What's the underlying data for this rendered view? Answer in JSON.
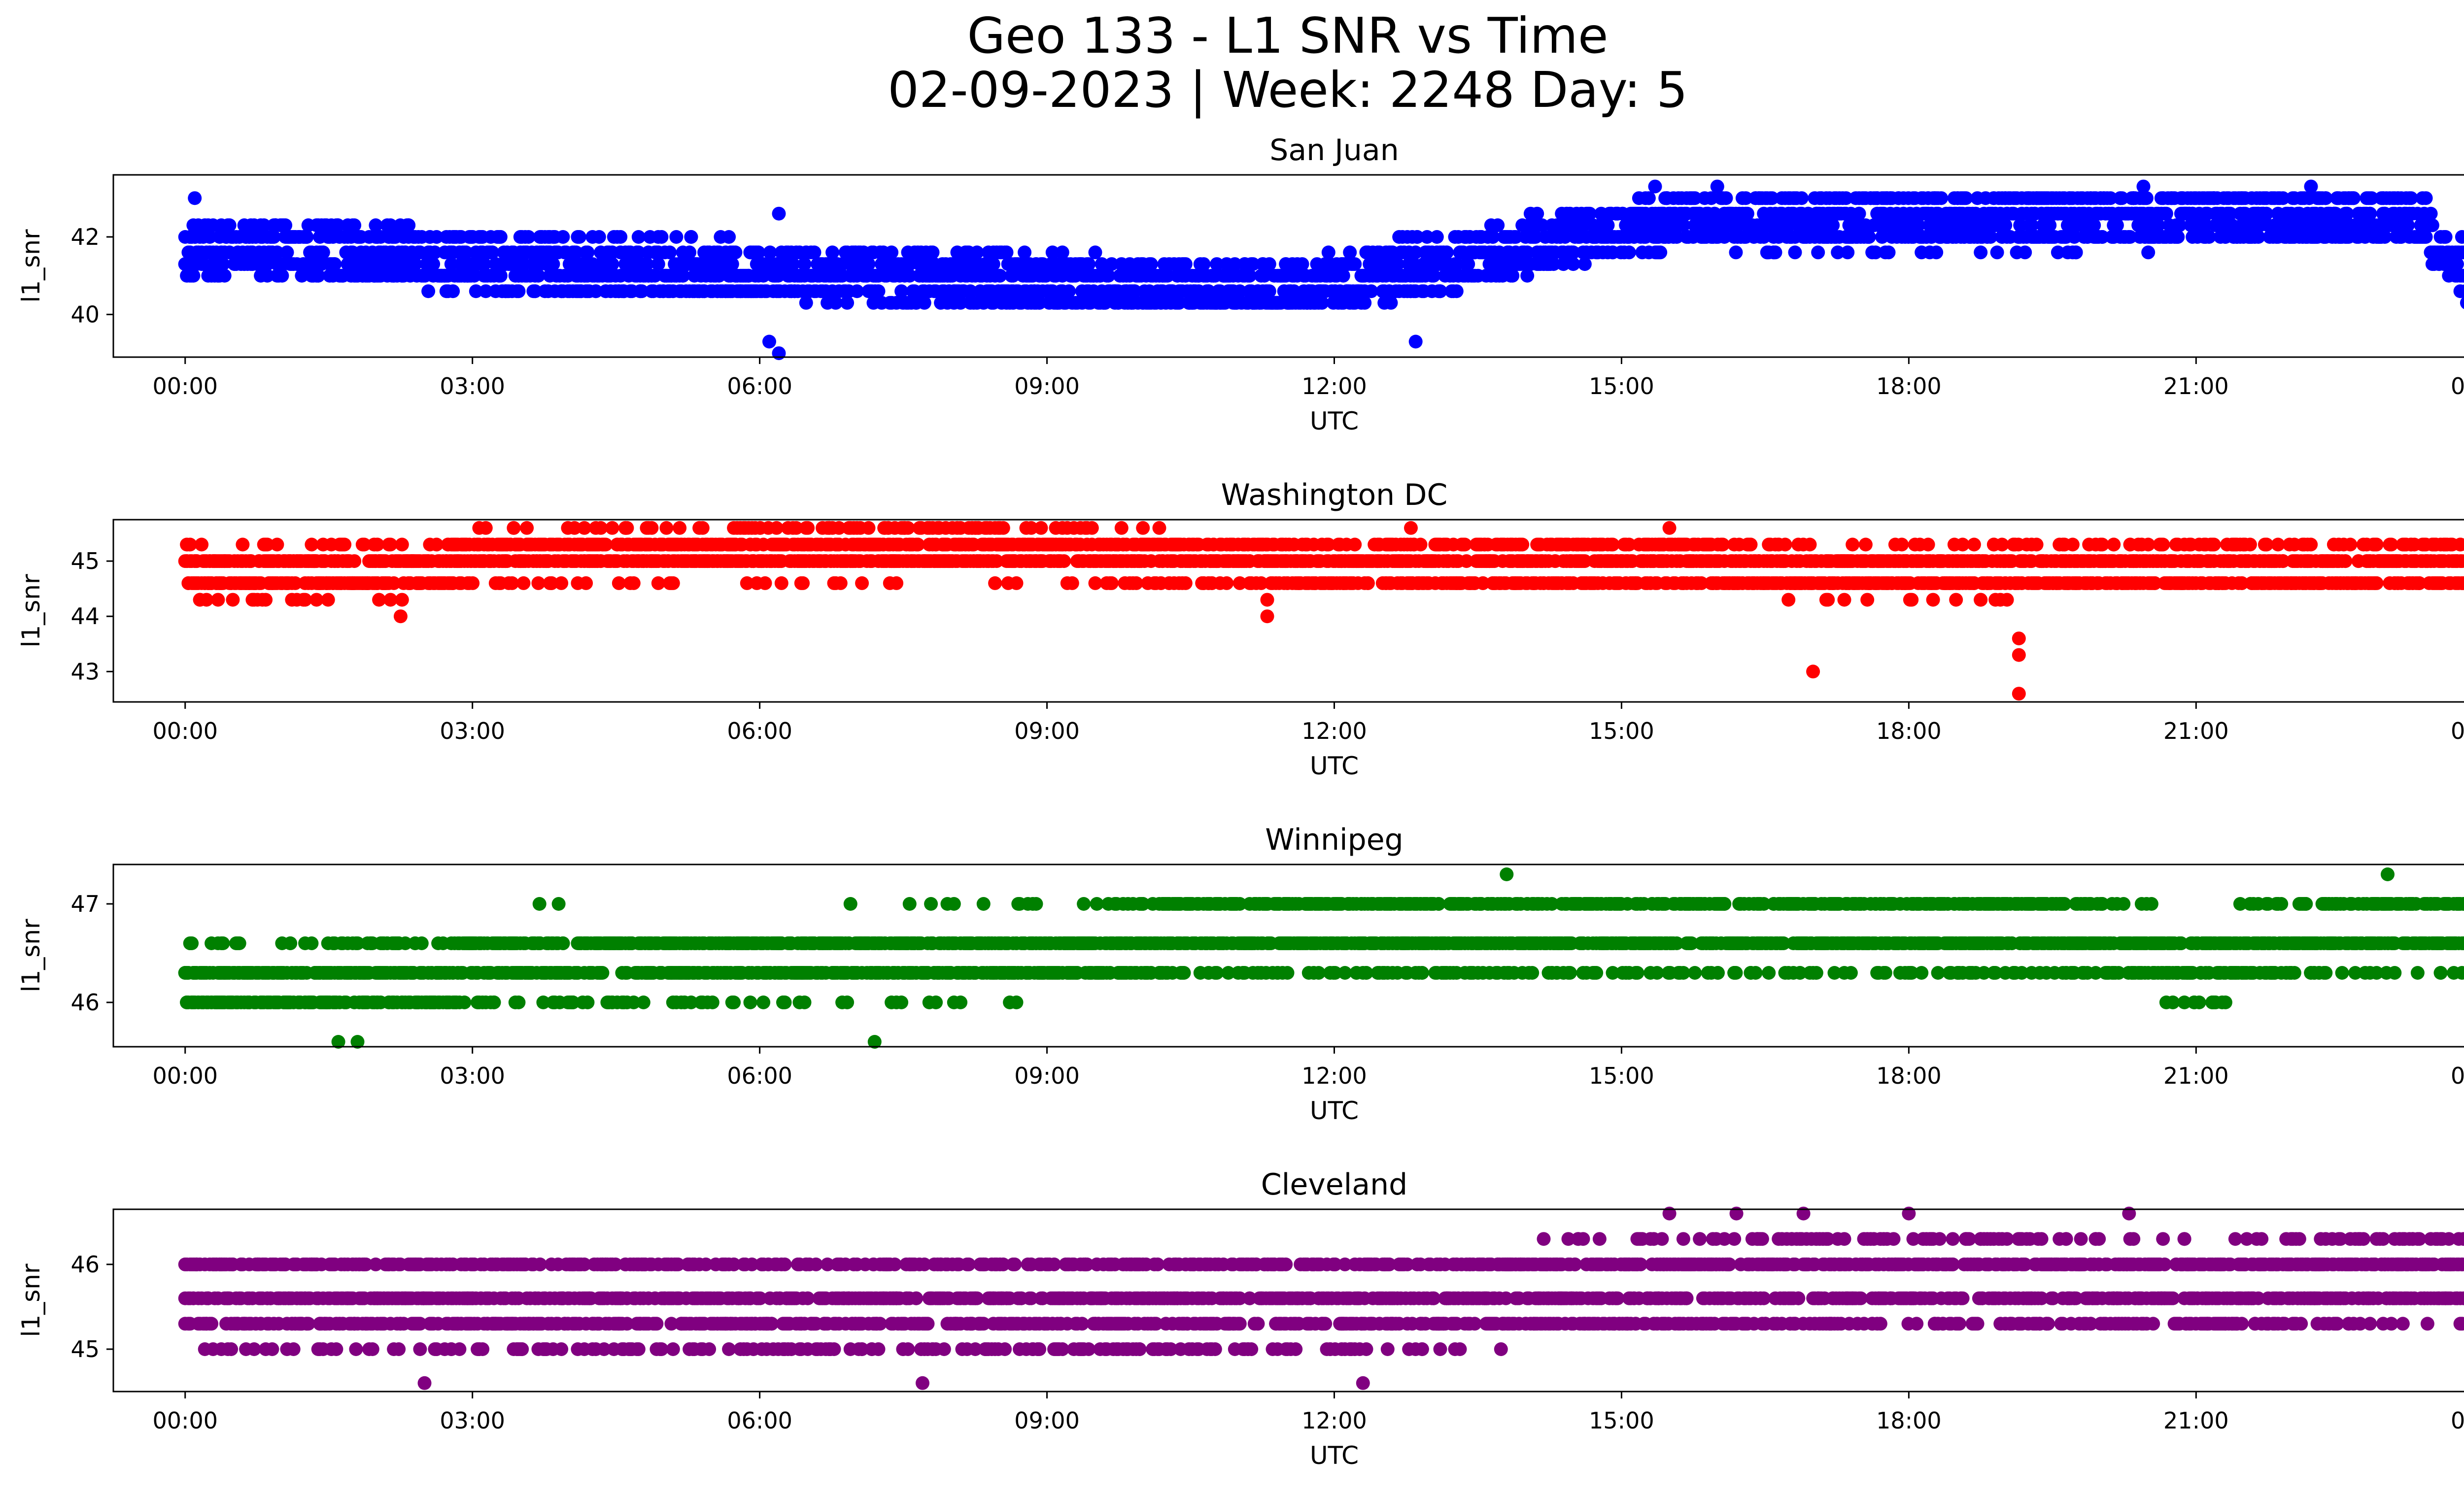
{
  "figure": {
    "title_line1": "Geo 133 - L1 SNR vs Time",
    "title_line2": "02-09-2023 | Week: 2248 Day: 5"
  },
  "chart_data": [
    {
      "type": "scatter",
      "title": "San Juan",
      "xlabel": "UTC",
      "ylabel": "l1_snr",
      "color": "#0000ff",
      "xlim": [
        "00:00",
        "24:00"
      ],
      "ylim": [
        38.9,
        43.6
      ],
      "xticks": [
        "00:00",
        "03:00",
        "06:00",
        "09:00",
        "12:00",
        "15:00",
        "18:00",
        "21:00",
        "00:00"
      ],
      "yticks": [
        40,
        42
      ],
      "levels": [
        40.3,
        40.6,
        41.0,
        41.3,
        41.6,
        42.0,
        42.3,
        42.6,
        43.0
      ],
      "trend": [
        [
          0.0,
          41.6
        ],
        [
          1.5,
          41.7
        ],
        [
          3.0,
          41.3
        ],
        [
          6.0,
          41.1
        ],
        [
          8.0,
          41.0
        ],
        [
          10.0,
          40.7
        ],
        [
          11.5,
          40.6
        ],
        [
          13.0,
          41.3
        ],
        [
          14.5,
          42.0
        ],
        [
          15.5,
          42.4
        ],
        [
          18.0,
          42.4
        ],
        [
          21.0,
          42.5
        ],
        [
          23.4,
          42.5
        ],
        [
          23.6,
          41.3
        ],
        [
          24.0,
          41.0
        ]
      ],
      "spread": 0.7,
      "outliers": [
        [
          6.1,
          39.3
        ],
        [
          6.2,
          39.0
        ],
        [
          6.2,
          42.6
        ],
        [
          12.85,
          39.3
        ],
        [
          0.1,
          43.0
        ],
        [
          15.35,
          43.3
        ],
        [
          16.0,
          43.3
        ],
        [
          20.45,
          43.3
        ],
        [
          22.2,
          43.3
        ]
      ]
    },
    {
      "type": "scatter",
      "title": "Washington DC",
      "xlabel": "UTC",
      "ylabel": "l1_snr",
      "color": "#ff0000",
      "xlim": [
        "00:00",
        "24:00"
      ],
      "ylim": [
        42.45,
        45.75
      ],
      "xticks": [
        "00:00",
        "03:00",
        "06:00",
        "09:00",
        "12:00",
        "15:00",
        "18:00",
        "21:00",
        "00:00"
      ],
      "yticks": [
        43,
        44,
        45
      ],
      "levels": [
        44.3,
        44.6,
        45.0,
        45.3,
        45.6
      ],
      "trend": [
        [
          0.0,
          44.8
        ],
        [
          2.5,
          44.8
        ],
        [
          3.0,
          45.1
        ],
        [
          9.0,
          45.2
        ],
        [
          11.0,
          45.0
        ],
        [
          12.0,
          44.9
        ],
        [
          15.0,
          45.0
        ],
        [
          17.0,
          44.8
        ],
        [
          24.0,
          44.9
        ]
      ],
      "spread": 0.4,
      "outliers": [
        [
          2.25,
          44.0
        ],
        [
          11.3,
          44.0
        ],
        [
          11.3,
          44.3
        ],
        [
          17.0,
          43.0
        ],
        [
          19.15,
          42.6
        ],
        [
          19.15,
          43.3
        ],
        [
          19.15,
          43.6
        ],
        [
          7.3,
          45.6
        ],
        [
          12.8,
          45.6
        ],
        [
          15.5,
          45.6
        ]
      ]
    },
    {
      "type": "scatter",
      "title": "Winnipeg",
      "xlabel": "UTC",
      "ylabel": "l1_snr",
      "color": "#008000",
      "xlim": [
        "00:00",
        "24:00"
      ],
      "ylim": [
        45.55,
        47.4
      ],
      "xticks": [
        "00:00",
        "03:00",
        "06:00",
        "09:00",
        "12:00",
        "15:00",
        "18:00",
        "21:00",
        "00:00"
      ],
      "yticks": [
        46,
        47
      ],
      "levels": [
        45.6,
        46.0,
        46.3,
        46.6,
        47.0,
        47.3
      ],
      "trend": [
        [
          0.0,
          46.2
        ],
        [
          2.7,
          46.2
        ],
        [
          3.0,
          46.4
        ],
        [
          9.5,
          46.5
        ],
        [
          10.5,
          46.7
        ],
        [
          19.5,
          46.7
        ],
        [
          21.0,
          46.4
        ],
        [
          22.5,
          46.7
        ],
        [
          24.0,
          46.8
        ]
      ],
      "spread": 0.35,
      "outliers": [
        [
          1.6,
          45.6
        ],
        [
          1.8,
          45.6
        ],
        [
          7.2,
          45.6
        ],
        [
          13.8,
          47.3
        ],
        [
          23.0,
          47.3
        ],
        [
          3.7,
          47.0
        ],
        [
          3.9,
          47.0
        ],
        [
          8.7,
          47.0
        ]
      ]
    },
    {
      "type": "scatter",
      "title": "Cleveland",
      "xlabel": "UTC",
      "ylabel": "l1_snr",
      "color": "#800080",
      "xlim": [
        "00:00",
        "24:00"
      ],
      "ylim": [
        44.5,
        46.65
      ],
      "xticks": [
        "00:00",
        "03:00",
        "06:00",
        "09:00",
        "12:00",
        "15:00",
        "18:00",
        "21:00",
        "00:00"
      ],
      "yticks": [
        45,
        46
      ],
      "levels": [
        44.6,
        45.0,
        45.3,
        45.6,
        46.0,
        46.3,
        46.6
      ],
      "trend": [
        [
          0.0,
          45.6
        ],
        [
          6.0,
          45.5
        ],
        [
          12.0,
          45.5
        ],
        [
          14.5,
          45.7
        ],
        [
          18.0,
          45.8
        ],
        [
          21.0,
          45.7
        ],
        [
          24.0,
          45.9
        ]
      ],
      "spread": 0.5,
      "outliers": [
        [
          2.5,
          44.6
        ],
        [
          7.7,
          44.6
        ],
        [
          12.3,
          44.6
        ],
        [
          15.5,
          46.6
        ],
        [
          16.2,
          46.6
        ],
        [
          16.9,
          46.6
        ],
        [
          18.0,
          46.6
        ],
        [
          20.3,
          46.6
        ]
      ]
    }
  ]
}
